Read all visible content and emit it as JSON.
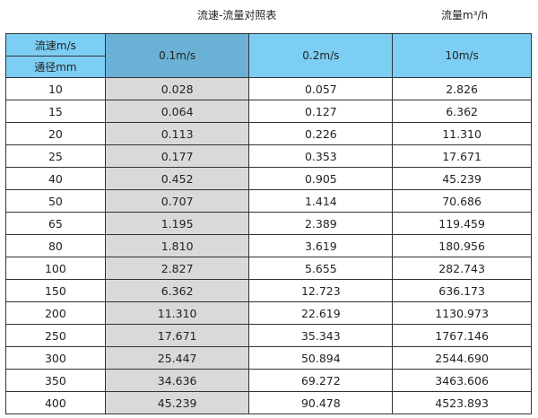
{
  "title": "流速-流量对照表",
  "unit": "流量m³/h",
  "header": {
    "velocity_label": "流速m/s",
    "diameter_label": "通径mm",
    "columns": [
      "0.1m/s",
      "0.2m/s",
      "10m/s"
    ]
  },
  "colors": {
    "header": "#7ccef4",
    "header_selected": "#6bb1d5",
    "highlight_column": "#d9d9d9"
  },
  "rows": [
    [
      "10",
      "0.028",
      "0.057",
      "2.826"
    ],
    [
      "15",
      "0.064",
      "0.127",
      "6.362"
    ],
    [
      "20",
      "0.113",
      "0.226",
      "11.310"
    ],
    [
      "25",
      "0.177",
      "0.353",
      "17.671"
    ],
    [
      "40",
      "0.452",
      "0.905",
      "45.239"
    ],
    [
      "50",
      "0.707",
      "1.414",
      "70.686"
    ],
    [
      "65",
      "1.195",
      "2.389",
      "119.459"
    ],
    [
      "80",
      "1.810",
      "3.619",
      "180.956"
    ],
    [
      "100",
      "2.827",
      "5.655",
      "282.743"
    ],
    [
      "150",
      "6.362",
      "12.723",
      "636.173"
    ],
    [
      "200",
      "11.310",
      "22.619",
      "1130.973"
    ],
    [
      "250",
      "17.671",
      "35.343",
      "1767.146"
    ],
    [
      "300",
      "25.447",
      "50.894",
      "2544.690"
    ],
    [
      "350",
      "34.636",
      "69.272",
      "3463.606"
    ],
    [
      "400",
      "45.239",
      "90.478",
      "4523.893"
    ]
  ]
}
